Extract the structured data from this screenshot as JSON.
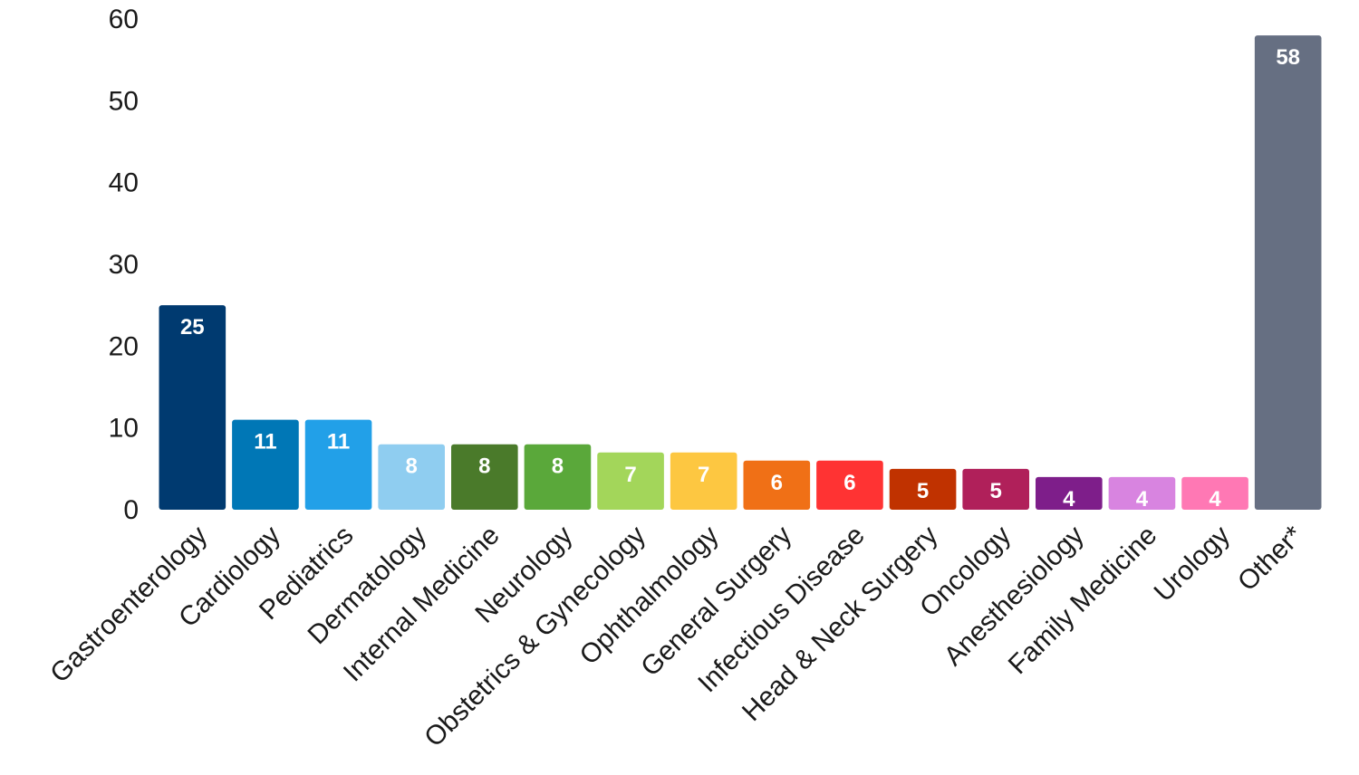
{
  "chart_data": {
    "type": "bar",
    "title": "",
    "xlabel": "",
    "ylabel": "",
    "ylim": [
      0,
      60
    ],
    "yticks": [
      0,
      10,
      20,
      30,
      40,
      50,
      60
    ],
    "grid": false,
    "categories": [
      "Gastroenterology",
      "Cardiology",
      "Pediatrics",
      "Dermatology",
      "Internal Medicine",
      "Neurology",
      "Obstetrics & Gynecology",
      "Ophthalmology",
      "General Surgery",
      "Infectious Disease",
      "Head & Neck Surgery",
      "Oncology",
      "Anesthesiology",
      "Family Medicine",
      "Urology",
      "Other*"
    ],
    "values": [
      25,
      11,
      11,
      8,
      8,
      8,
      7,
      7,
      6,
      6,
      5,
      5,
      4,
      4,
      4,
      58
    ],
    "colors": [
      "#003a70",
      "#0077b6",
      "#22a0e8",
      "#8fcdf0",
      "#4a7a2a",
      "#5aa83a",
      "#a3d65a",
      "#fdc741",
      "#f07016",
      "#ff3333",
      "#c03200",
      "#b0205a",
      "#7e1e8a",
      "#d884e0",
      "#ff78b4",
      "#666f82"
    ]
  }
}
